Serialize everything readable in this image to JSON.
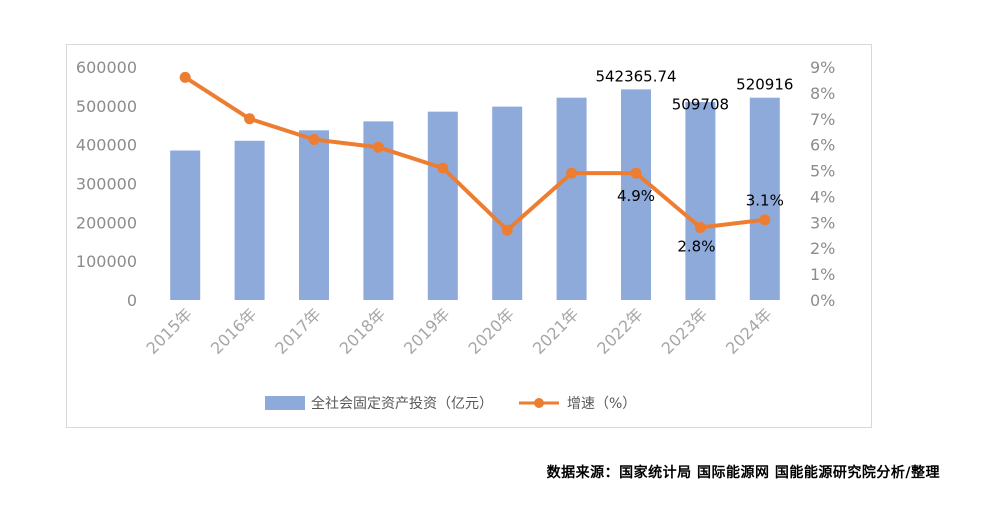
{
  "chart_data": {
    "type": "bar",
    "categories": [
      "2015年",
      "2016年",
      "2017年",
      "2018年",
      "2019年",
      "2020年",
      "2021年",
      "2022年",
      "2023年",
      "2024年"
    ],
    "series": [
      {
        "name": "全社会固定资产投资（亿元）",
        "type": "bar",
        "axis": "left",
        "color": "#8eaadb",
        "values": [
          385000,
          410000,
          437000,
          460000,
          485000,
          498000,
          521000,
          542365.74,
          509708,
          520916
        ]
      },
      {
        "name": "增速（%）",
        "type": "line",
        "axis": "right",
        "color": "#ed7d31",
        "values": [
          8.6,
          7.0,
          6.2,
          5.9,
          5.1,
          2.7,
          4.9,
          4.9,
          2.8,
          3.1
        ]
      }
    ],
    "left_axis": {
      "ylim": [
        0,
        600000
      ],
      "ticks": [
        "0",
        "100000",
        "200000",
        "300000",
        "400000",
        "500000",
        "600000"
      ]
    },
    "right_axis": {
      "ylim": [
        0,
        9
      ],
      "ticks": [
        "0%",
        "1%",
        "2%",
        "3%",
        "4%",
        "5%",
        "6%",
        "7%",
        "8%",
        "9%"
      ]
    },
    "bar_labels": [
      {
        "index": 7,
        "text": "542365.74"
      },
      {
        "index": 8,
        "text": "509708"
      },
      {
        "index": 9,
        "text": "520916"
      }
    ],
    "line_labels": [
      {
        "index": 7,
        "text": "4.9%"
      },
      {
        "index": 8,
        "text": "2.8%"
      },
      {
        "index": 9,
        "text": "3.1%"
      }
    ],
    "legend_position": "bottom",
    "grid": false
  },
  "source_note": "数据来源：国家统计局 国际能源网 国能能源研究院分析/整理"
}
